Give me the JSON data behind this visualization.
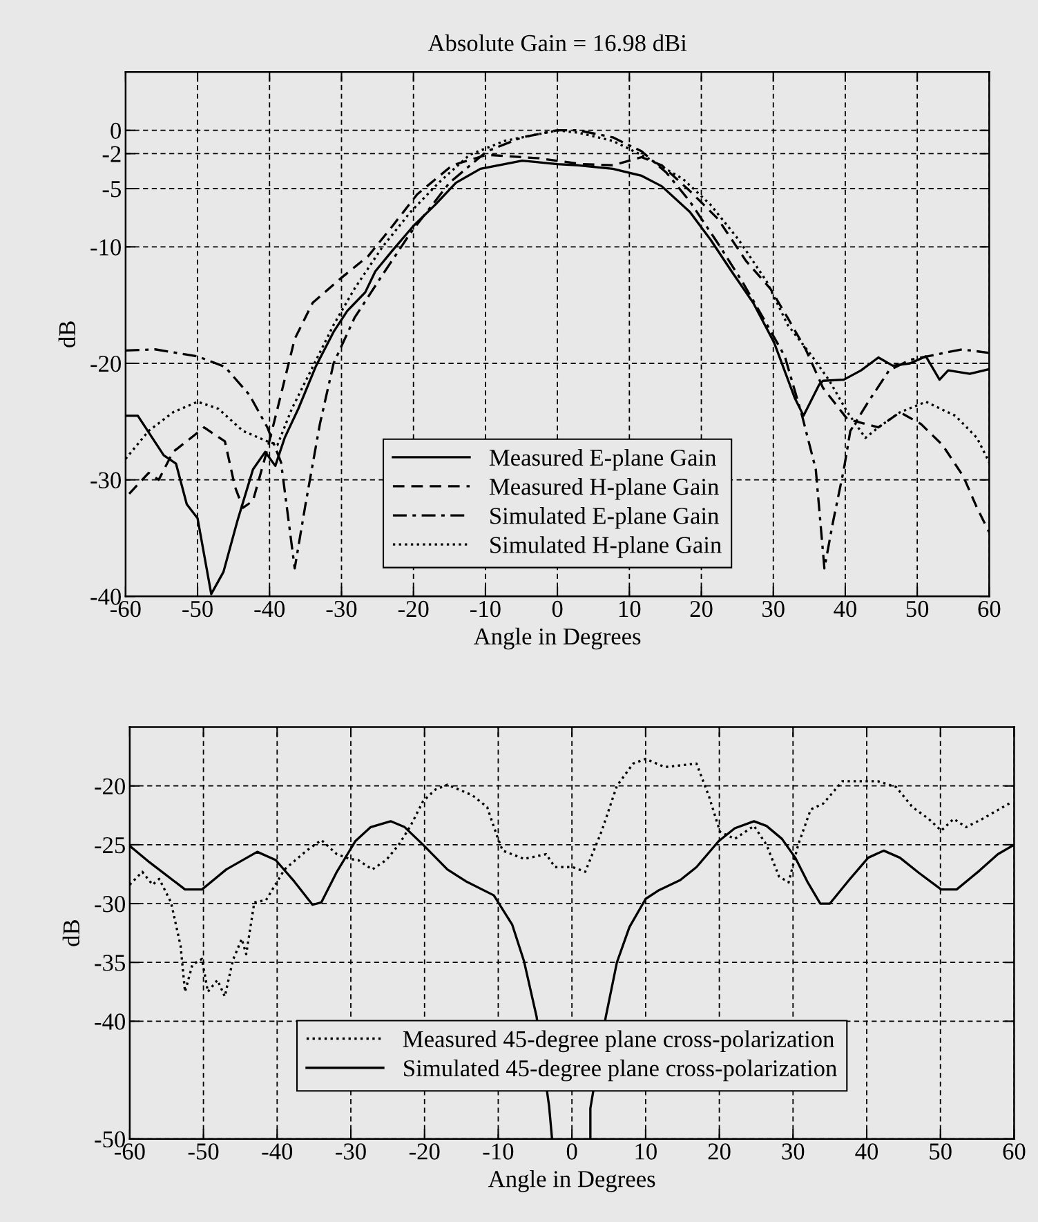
{
  "chart_data": [
    {
      "type": "line",
      "title": "Absolute Gain = 16.98 dBi",
      "xlabel": "Angle in Degrees",
      "ylabel": "dB",
      "xlim": [
        -60,
        60
      ],
      "xticks": [
        -60,
        -50,
        -40,
        -30,
        -20,
        -10,
        0,
        10,
        20,
        30,
        40,
        50,
        60
      ],
      "ylim": [
        -40,
        5
      ],
      "yticks": [
        -40,
        -30,
        -20,
        -10,
        -5,
        -2,
        0
      ],
      "grid": true,
      "legend": "bottom",
      "series": [
        {
          "name": "Measured E-plane Gain",
          "color": "#000000",
          "line_style": "solid",
          "x": [
            -60,
            -58.3,
            -54.7,
            -53,
            -51.5,
            -50,
            -48.1,
            -46.4,
            -44.5,
            -42.3,
            -40.6,
            -39.2,
            -37.9,
            -36,
            -33.6,
            -31.1,
            -29.2,
            -26.7,
            -25.3,
            -22.9,
            -20,
            -17,
            -14.1,
            -10.7,
            -4.9,
            0,
            2.9,
            7.7,
            11.7,
            14.5,
            18.4,
            21.3,
            24.2,
            27.2,
            30.1,
            33,
            34.2,
            36.4,
            36.9,
            39.8,
            42.2,
            44.6,
            46.6,
            49,
            51.2,
            53.1,
            54.3,
            57.3,
            60
          ],
          "values": [
            -24.5,
            -24.5,
            -27.9,
            -28.6,
            -32.1,
            -33.3,
            -39.8,
            -37.9,
            -33.6,
            -29.1,
            -27.6,
            -28.8,
            -26.4,
            -23.9,
            -20.3,
            -17.3,
            -15.5,
            -13.9,
            -12.1,
            -10.3,
            -8.2,
            -6.4,
            -4.5,
            -3.3,
            -2.6,
            -2.9,
            -3.0,
            -3.3,
            -3.9,
            -4.8,
            -7.0,
            -9.4,
            -12.1,
            -14.8,
            -18.2,
            -23.0,
            -24.5,
            -21.8,
            -21.5,
            -21.4,
            -20.6,
            -19.5,
            -20.2,
            -20.0,
            -19.4,
            -21.4,
            -20.6,
            -20.9,
            -20.5
          ]
        },
        {
          "name": "Measured H-plane Gain",
          "color": "#000000",
          "line_style": "dashed",
          "x": [
            -59.5,
            -56.8,
            -55.4,
            -53.4,
            -50.5,
            -49.1,
            -46.2,
            -44.8,
            -43.7,
            -42.3,
            -40.4,
            -38.9,
            -36.5,
            -34,
            -30.1,
            -26.3,
            -22.9,
            -19.5,
            -14.6,
            -9.8,
            -2.5,
            3.4,
            7.7,
            11.7,
            14.5,
            18.4,
            22.3,
            26.2,
            29.6,
            32,
            34.5,
            36.9,
            40.3,
            42.8,
            44.6,
            47.6,
            50.5,
            53.5,
            56.4,
            58.3,
            60
          ],
          "values": [
            -31.2,
            -29.4,
            -30.0,
            -27.6,
            -26.2,
            -25.5,
            -26.7,
            -30.6,
            -32.4,
            -31.8,
            -27.6,
            -23.9,
            -17.9,
            -14.8,
            -12.7,
            -10.8,
            -8.2,
            -5.5,
            -3.0,
            -2.1,
            -2.4,
            -2.9,
            -3.0,
            -2.3,
            -3.0,
            -5.2,
            -7.6,
            -11.2,
            -13.6,
            -16.1,
            -18.8,
            -22.1,
            -24.8,
            -25.2,
            -25.5,
            -24.2,
            -25.2,
            -27.0,
            -29.7,
            -32.4,
            -34.5
          ]
        },
        {
          "name": "Simulated E-plane Gain",
          "color": "#000000",
          "line_style": "dashdot",
          "x": [
            -60,
            -55.9,
            -50,
            -46.2,
            -42.8,
            -40.3,
            -38.4,
            -36.5,
            -35,
            -33,
            -31.1,
            -28.2,
            -24.3,
            -20.4,
            -15,
            -9.8,
            -4.9,
            0,
            2.9,
            7.7,
            11.7,
            15.1,
            18.4,
            22.3,
            25.7,
            28.6,
            31.6,
            34,
            35.9,
            37.1,
            38.3,
            39.8,
            40.7,
            43.2,
            46.1,
            49,
            51.4,
            56.2,
            60
          ],
          "values": [
            -18.9,
            -18.8,
            -19.4,
            -20.3,
            -22.7,
            -25.5,
            -28.5,
            -37.6,
            -32.1,
            -25.2,
            -20.0,
            -16.1,
            -12.4,
            -8.8,
            -4.5,
            -1.8,
            -0.6,
            0,
            0,
            -0.6,
            -1.8,
            -3.6,
            -6.1,
            -9.7,
            -13.0,
            -16.1,
            -19.4,
            -24.5,
            -29.1,
            -37.6,
            -33.6,
            -29.1,
            -25.8,
            -23.3,
            -20.6,
            -19.7,
            -19.4,
            -18.8,
            -19.1
          ]
        },
        {
          "name": "Simulated H-plane Gain",
          "color": "#000000",
          "line_style": "dotted",
          "x": [
            -60,
            -56.8,
            -53.4,
            -50,
            -47.1,
            -43.7,
            -40.3,
            -38.9,
            -36.9,
            -34,
            -31.1,
            -28.2,
            -24.3,
            -20.4,
            -16.5,
            -12.2,
            -7.3,
            0,
            2.9,
            7.7,
            12.6,
            17.5,
            21.3,
            25.2,
            29.1,
            32,
            35.4,
            37.8,
            40.3,
            42.8,
            44.6,
            47.6,
            51.2,
            55.3,
            58.3,
            60
          ],
          "values": [
            -28.2,
            -25.8,
            -24.2,
            -23.3,
            -23.9,
            -25.8,
            -26.7,
            -27.0,
            -23.9,
            -20.3,
            -16.7,
            -13.6,
            -10.0,
            -7.0,
            -4.5,
            -2.1,
            -0.9,
            0,
            -0.2,
            -0.9,
            -2.4,
            -4.2,
            -6.4,
            -9.4,
            -13.0,
            -16.7,
            -19.4,
            -21.5,
            -24.2,
            -26.4,
            -25.5,
            -24.2,
            -23.3,
            -24.5,
            -26.4,
            -28.5
          ]
        }
      ]
    },
    {
      "type": "line",
      "xlabel": "Angle in Degrees",
      "ylabel": "dB",
      "xlim": [
        -60,
        60
      ],
      "xticks": [
        -60,
        -50,
        -40,
        -30,
        -20,
        -10,
        0,
        10,
        20,
        30,
        40,
        50,
        60
      ],
      "ylim": [
        -50,
        -15
      ],
      "yticks": [
        -50,
        -40,
        -35,
        -30,
        -25,
        -20
      ],
      "grid": true,
      "legend": "bottom",
      "series": [
        {
          "name": "Measured 45-degree plane cross-polarization",
          "color": "#000000",
          "line_style": "dotted",
          "x": [
            -60,
            -58.3,
            -56.9,
            -56,
            -54.4,
            -53.1,
            -52.5,
            -51.5,
            -50.2,
            -49.4,
            -48.1,
            -47.1,
            -46,
            -44.8,
            -44.2,
            -43.1,
            -41.5,
            -39,
            -36,
            -34,
            -31.9,
            -30.2,
            -29,
            -27.1,
            -25.2,
            -23.5,
            -21.9,
            -20.2,
            -18.5,
            -16.9,
            -13.5,
            -11.5,
            -10.2,
            -9.4,
            -6.5,
            -3.5,
            -2.3,
            0.1,
            1.8,
            4,
            6.1,
            8.3,
            10,
            12.6,
            16.9,
            18.6,
            20.1,
            22.1,
            24.7,
            26.4,
            28.1,
            29.4,
            30.7,
            32.4,
            34.1,
            36.7,
            38.4,
            41.5,
            44,
            46.2,
            48.4,
            50.1,
            51.8,
            53.5,
            55.7,
            59.6
          ],
          "values": [
            -28.4,
            -27.3,
            -28.4,
            -27.9,
            -29.9,
            -33.6,
            -37.5,
            -35.2,
            -34.7,
            -37.5,
            -36.5,
            -37.9,
            -34.8,
            -33.0,
            -34.3,
            -29.9,
            -29.7,
            -27.1,
            -25.5,
            -24.6,
            -25.8,
            -26.2,
            -26.3,
            -27.1,
            -26.3,
            -25.0,
            -23.4,
            -21.3,
            -20.3,
            -19.9,
            -20.8,
            -21.8,
            -24.2,
            -25.5,
            -26.2,
            -25.8,
            -26.9,
            -26.9,
            -27.3,
            -23.9,
            -20.0,
            -18.1,
            -17.7,
            -18.4,
            -18.1,
            -20.9,
            -23.9,
            -24.5,
            -23.4,
            -25.0,
            -27.7,
            -28.2,
            -25.0,
            -22.0,
            -21.5,
            -19.6,
            -19.6,
            -19.6,
            -20.1,
            -21.8,
            -22.8,
            -23.8,
            -22.8,
            -23.5,
            -22.8,
            -21.4
          ]
        },
        {
          "name": "Simulated 45-degree plane cross-polarization",
          "color": "#000000",
          "line_style": "solid",
          "x": [
            -60,
            -57.3,
            -52.5,
            -50.2,
            -46.9,
            -42.7,
            -40.2,
            -37.7,
            -35.2,
            -34,
            -31.9,
            -29.4,
            -27.3,
            -24.6,
            -22.7,
            -20.2,
            -16.9,
            -14.4,
            -10.6,
            -8.1,
            -6.5,
            -4.8,
            -3.1,
            -2.7,
            0,
            2.5,
            2.5,
            4.6,
            6.1,
            7.8,
            10,
            11.7,
            14.7,
            16.9,
            19.9,
            22.1,
            24.7,
            26.4,
            28.5,
            30.3,
            32,
            33.7,
            35,
            37.6,
            40.2,
            42.3,
            44.5,
            47.1,
            50.1,
            52.2,
            55.3,
            57.8,
            60
          ],
          "values": [
            -25.1,
            -26.5,
            -28.8,
            -28.8,
            -27.1,
            -25.6,
            -26.3,
            -28.1,
            -30.1,
            -29.9,
            -27.3,
            -24.7,
            -23.5,
            -23.0,
            -23.5,
            -25.0,
            -27.1,
            -28.1,
            -29.3,
            -31.8,
            -34.9,
            -39.6,
            -47.2,
            -50,
            null,
            -50,
            -47.4,
            -39.6,
            -35.0,
            -32.0,
            -29.6,
            -28.9,
            -28.0,
            -26.9,
            -24.7,
            -23.6,
            -23.0,
            -23.4,
            -24.5,
            -26.1,
            -28.2,
            -30.0,
            -30.0,
            -28.0,
            -26.1,
            -25.5,
            -26.1,
            -27.4,
            -28.8,
            -28.8,
            -27.2,
            -25.8,
            -25.0
          ]
        }
      ]
    }
  ]
}
